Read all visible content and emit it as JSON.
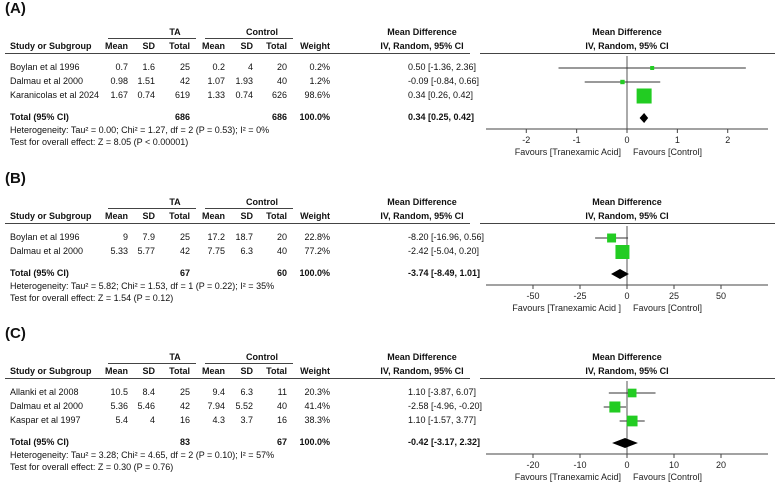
{
  "colors": {
    "point": "#22cc22",
    "diamond": "#000000",
    "axis": "#444444"
  },
  "headers": {
    "ta": "TA",
    "control": "Control",
    "study": "Study or Subgroup",
    "mean": "Mean",
    "sd": "SD",
    "total": "Total",
    "weight": "Weight",
    "md_title": "Mean Difference",
    "md_sub": "IV, Random, 95% CI"
  },
  "chart_data": [
    {
      "type": "forest",
      "label": "(A)",
      "studies": [
        {
          "name": "Boylan et al 1996",
          "ta_mean": "0.7",
          "ta_sd": "1.6",
          "ta_total": "25",
          "c_mean": "0.2",
          "c_sd": "4",
          "c_total": "20",
          "weight": "0.2%",
          "ci_text": "0.50 [-1.36, 2.36]",
          "est": 0.5,
          "lo": -1.36,
          "hi": 2.36
        },
        {
          "name": "Dalmau et al 2000",
          "ta_mean": "0.98",
          "ta_sd": "1.51",
          "ta_total": "42",
          "c_mean": "1.07",
          "c_sd": "1.93",
          "c_total": "40",
          "weight": "1.2%",
          "ci_text": "-0.09 [-0.84, 0.66]",
          "est": -0.09,
          "lo": -0.84,
          "hi": 0.66
        },
        {
          "name": "Karanicolas et al 2024",
          "ta_mean": "1.67",
          "ta_sd": "0.74",
          "ta_total": "619",
          "c_mean": "1.33",
          "c_sd": "0.74",
          "c_total": "626",
          "weight": "98.6%",
          "ci_text": "0.34 [0.26, 0.42]",
          "est": 0.34,
          "lo": 0.26,
          "hi": 0.42
        }
      ],
      "total": {
        "label": "Total (95% CI)",
        "ta_total": "686",
        "c_total": "686",
        "weight": "100.0%",
        "ci_text": "0.34 [0.25, 0.42]",
        "est": 0.34,
        "lo": 0.25,
        "hi": 0.42
      },
      "heterogeneity": "Heterogeneity: Tau² = 0.00; Chi² = 1.27, df = 2 (P = 0.53); I² = 0%",
      "overall": "Test for overall effect: Z = 8.05 (P < 0.00001)",
      "axis": {
        "xlim": [
          -2.8,
          2.8
        ],
        "ticks": [
          -2,
          -1,
          0,
          1,
          2
        ],
        "tick_labels": [
          "-2",
          "-1",
          "0",
          "1",
          "2"
        ]
      },
      "favours_left": "Favours [Tranexamic Acid]",
      "favours_right": "Favours [Control]"
    },
    {
      "type": "forest",
      "label": "(B)",
      "studies": [
        {
          "name": "Boylan et al 1996",
          "ta_mean": "9",
          "ta_sd": "7.9",
          "ta_total": "25",
          "c_mean": "17.2",
          "c_sd": "18.7",
          "c_total": "20",
          "weight": "22.8%",
          "ci_text": "-8.20 [-16.96, 0.56]",
          "est": -8.2,
          "lo": -16.96,
          "hi": 0.56
        },
        {
          "name": "Dalmau et al 2000",
          "ta_mean": "5.33",
          "ta_sd": "5.77",
          "ta_total": "42",
          "c_mean": "7.75",
          "c_sd": "6.3",
          "c_total": "40",
          "weight": "77.2%",
          "ci_text": "-2.42 [-5.04, 0.20]",
          "est": -2.42,
          "lo": -5.04,
          "hi": 0.2
        }
      ],
      "total": {
        "label": "Total (95% CI)",
        "ta_total": "67",
        "c_total": "60",
        "weight": "100.0%",
        "ci_text": "-3.74 [-8.49, 1.01]",
        "est": -3.74,
        "lo": -8.49,
        "hi": 1.01
      },
      "heterogeneity": "Heterogeneity: Tau² = 5.82; Chi² = 1.53, df = 1 (P = 0.22); I² = 35%",
      "overall": "Test for overall effect: Z = 1.54 (P = 0.12)",
      "axis": {
        "xlim": [
          -75,
          75
        ],
        "ticks": [
          -50,
          -25,
          0,
          25,
          50
        ],
        "tick_labels": [
          "-50",
          "-25",
          "0",
          "25",
          "50"
        ]
      },
      "favours_left": "Favours [Tranexamic Acid ]",
      "favours_right": "Favours [Control]"
    },
    {
      "type": "forest",
      "label": "(C)",
      "studies": [
        {
          "name": "Allanki et al 2008",
          "ta_mean": "10.5",
          "ta_sd": "8.4",
          "ta_total": "25",
          "c_mean": "9.4",
          "c_sd": "6.3",
          "c_total": "11",
          "weight": "20.3%",
          "ci_text": "1.10 [-3.87, 6.07]",
          "est": 1.1,
          "lo": -3.87,
          "hi": 6.07
        },
        {
          "name": "Dalmau et al 2000",
          "ta_mean": "5.36",
          "ta_sd": "5.46",
          "ta_total": "42",
          "c_mean": "7.94",
          "c_sd": "5.52",
          "c_total": "40",
          "weight": "41.4%",
          "ci_text": "-2.58 [-4.96, -0.20]",
          "est": -2.58,
          "lo": -4.96,
          "hi": -0.2
        },
        {
          "name": "Kaspar et al 1997",
          "ta_mean": "5.4",
          "ta_sd": "4",
          "ta_total": "16",
          "c_mean": "4.3",
          "c_sd": "3.7",
          "c_total": "16",
          "weight": "38.3%",
          "ci_text": "1.10 [-1.57, 3.77]",
          "est": 1.1,
          "lo": -1.57,
          "hi": 3.77
        }
      ],
      "total": {
        "label": "Total (95% CI)",
        "ta_total": "83",
        "c_total": "67",
        "weight": "100.0%",
        "ci_text": "-0.42 [-3.17, 2.32]",
        "est": -0.42,
        "lo": -3.17,
        "hi": 2.32
      },
      "heterogeneity": "Heterogeneity: Tau² = 3.28; Chi² = 4.65, df = 2 (P = 0.10); I² = 57%",
      "overall": "Test for overall effect: Z = 0.30 (P = 0.76)",
      "axis": {
        "xlim": [
          -30,
          30
        ],
        "ticks": [
          -20,
          -10,
          0,
          10,
          20
        ],
        "tick_labels": [
          "-20",
          "-10",
          "0",
          "10",
          "20"
        ]
      },
      "favours_left": "Favours [Tranexamic Acid]",
      "favours_right": "Favours [Control]"
    }
  ]
}
